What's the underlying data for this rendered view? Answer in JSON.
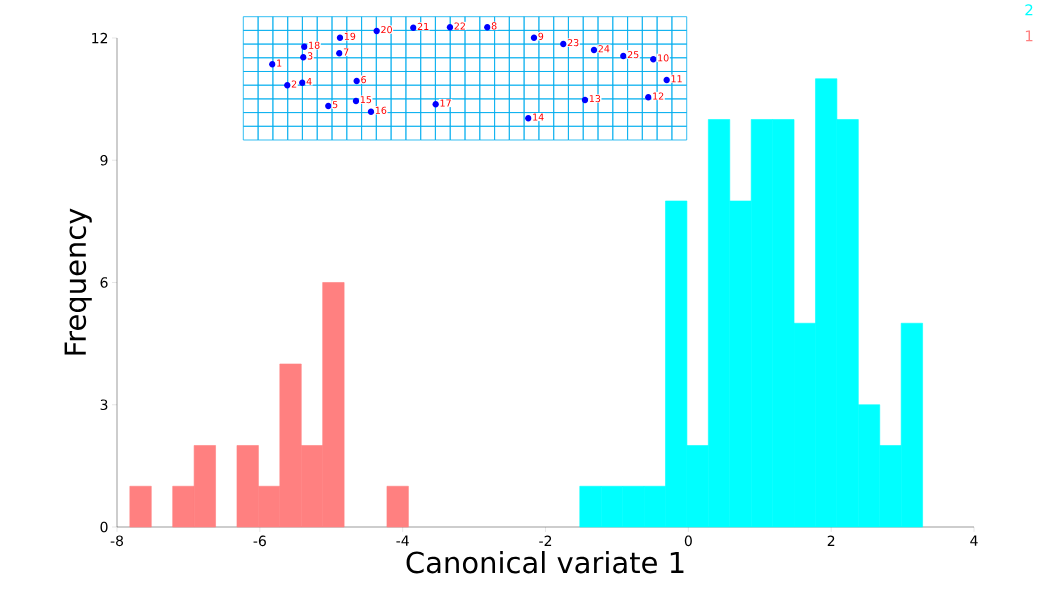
{
  "chart_data": {
    "type": "histogram",
    "xlabel": "Canonical variate 1",
    "ylabel": "Frequency",
    "xlim": [
      -8,
      4
    ],
    "xticks": [
      -8,
      -6,
      -4,
      -2,
      0,
      2,
      4
    ],
    "ylim": [
      0,
      12
    ],
    "yticks": [
      0,
      3,
      6,
      9,
      12
    ],
    "legend": "top right",
    "bins": [
      -7.82,
      -7.52,
      -7.22,
      -6.92,
      -6.62,
      -6.32,
      -6.02,
      -5.72,
      -5.42,
      -5.12,
      -4.82,
      -4.52,
      -4.22,
      -3.92,
      -3.62,
      -3.32,
      -3.02,
      -2.72,
      -2.42,
      -2.12,
      -1.82,
      -1.52,
      -1.22,
      -0.92,
      -0.62,
      -0.32,
      -0.02,
      0.28,
      0.58,
      0.88,
      1.18,
      1.48,
      1.78,
      2.08,
      2.38,
      2.68,
      2.98,
      3.28
    ],
    "series": [
      {
        "name": "1",
        "color": "#ff8080",
        "values": [
          1,
          0,
          1,
          2,
          0,
          2,
          1,
          4,
          2,
          6,
          0,
          0,
          1,
          0,
          0,
          0,
          0,
          0,
          0,
          0,
          0,
          0,
          0,
          0,
          0,
          0,
          0,
          0,
          0,
          0,
          0,
          0,
          0,
          0,
          0,
          0,
          0
        ]
      },
      {
        "name": "2",
        "color": "#00ffff",
        "values": [
          0,
          0,
          0,
          0,
          0,
          0,
          0,
          0,
          0,
          0,
          0,
          0,
          0,
          0,
          0,
          0,
          0,
          0,
          0,
          0,
          0,
          1,
          1,
          1,
          1,
          8,
          2,
          10,
          8,
          10,
          10,
          5,
          11,
          10,
          3,
          2,
          5
        ]
      }
    ],
    "annotations": [
      "1",
      "2",
      "3",
      "4",
      "5",
      "6",
      "7",
      "8",
      "9",
      "10",
      "11",
      "12",
      "13",
      "14",
      "15",
      "16",
      "17",
      "18",
      "19",
      "20",
      "21",
      "22",
      "23",
      "24",
      "25"
    ]
  }
}
